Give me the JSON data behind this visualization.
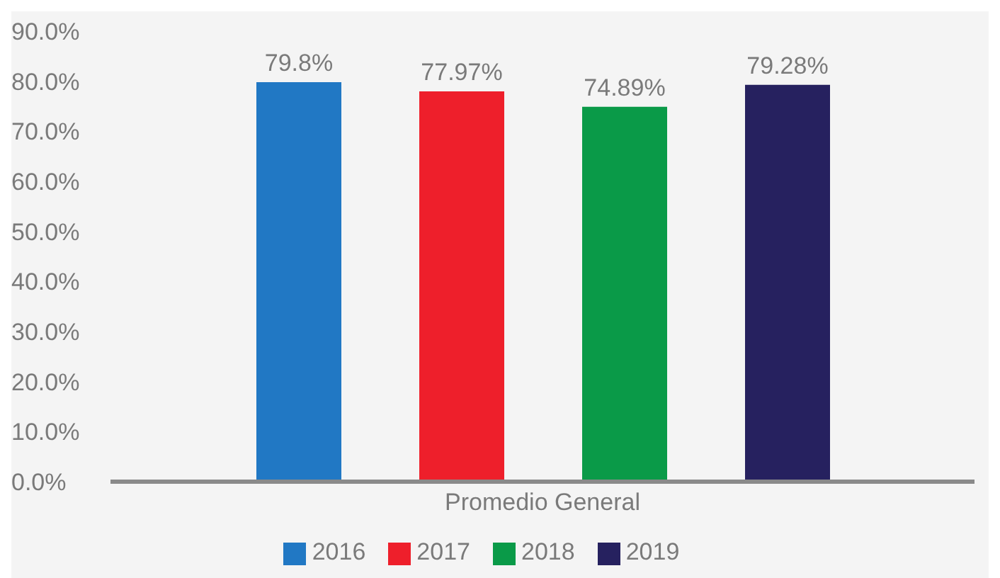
{
  "chart_data": {
    "type": "bar",
    "categories": [
      "Promedio General"
    ],
    "series": [
      {
        "name": "2016",
        "color": "#2178c4",
        "values": [
          79.8
        ],
        "value_labels": [
          "79.8%"
        ]
      },
      {
        "name": "2017",
        "color": "#ee1f2b",
        "values": [
          77.97
        ],
        "value_labels": [
          "77.97%"
        ]
      },
      {
        "name": "2018",
        "color": "#0a9a48",
        "values": [
          74.89
        ],
        "value_labels": [
          "74.89%"
        ]
      },
      {
        "name": "2019",
        "color": "#26215f",
        "values": [
          79.28
        ],
        "value_labels": [
          "79.28%"
        ]
      }
    ],
    "ylim": [
      0,
      90
    ],
    "yticks": [
      {
        "value": 0,
        "label": "0.0%"
      },
      {
        "value": 10,
        "label": "10.0%"
      },
      {
        "value": 20,
        "label": "20.0%"
      },
      {
        "value": 30,
        "label": "30.0%"
      },
      {
        "value": 40,
        "label": "40.0%"
      },
      {
        "value": 50,
        "label": "50.0%"
      },
      {
        "value": 60,
        "label": "60.0%"
      },
      {
        "value": 70,
        "label": "70.0%"
      },
      {
        "value": 80,
        "label": "80.0%"
      },
      {
        "value": 90,
        "label": "90.0%"
      }
    ],
    "grid": false,
    "legend": "bottom"
  }
}
